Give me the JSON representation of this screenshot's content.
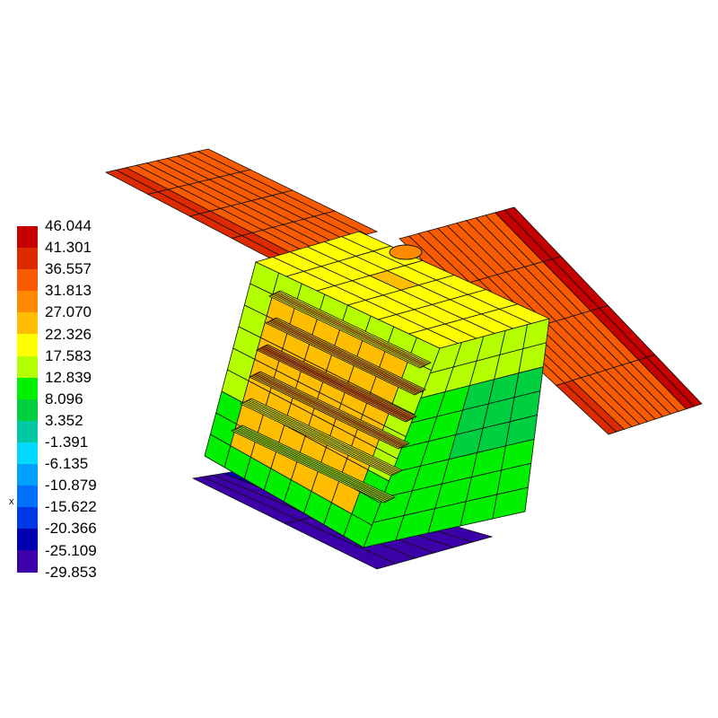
{
  "legend": {
    "labels": [
      "46.044",
      "41.301",
      "36.557",
      "31.813",
      "27.070",
      "22.326",
      "17.583",
      "12.839",
      "8.096",
      "3.352",
      "-1.391",
      "-6.135",
      "-10.879",
      "-15.622",
      "-20.366",
      "-25.109",
      "-29.853"
    ],
    "colors": [
      "#c40000",
      "#dd2a00",
      "#fa5a00",
      "#ff8a00",
      "#ffbe00",
      "#ffff00",
      "#b4ff00",
      "#00f000",
      "#00d040",
      "#00c8a0",
      "#00d8ff",
      "#00a0ff",
      "#0070ff",
      "#0038e8",
      "#0000b0",
      "#3c00a8"
    ]
  },
  "axis_label": "x"
}
